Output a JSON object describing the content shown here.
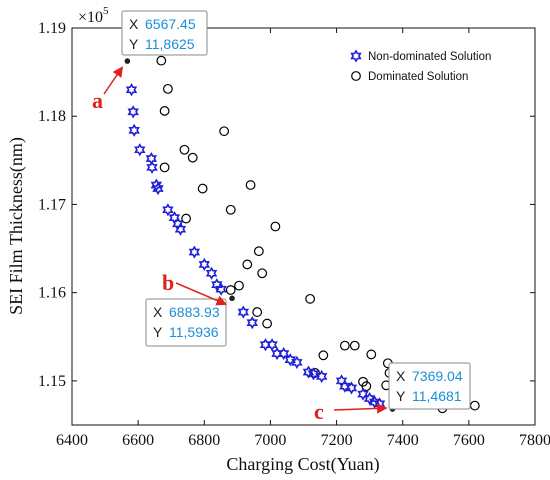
{
  "chart_data": {
    "type": "scatter",
    "title": "",
    "xlabel": "Charging Cost(Yuan)",
    "ylabel": "SEI Film Thickness(nm)",
    "y_multiplier": "×10",
    "y_multiplier_exp": "5",
    "xlim": [
      6400,
      7800
    ],
    "ylim": [
      1.145,
      1.19
    ],
    "xticks": [
      "6400",
      "6600",
      "6800",
      "7000",
      "7200",
      "7400",
      "7600",
      "7800"
    ],
    "yticks": [
      "1.15",
      "1.16",
      "1.17",
      "1.18",
      "1.19"
    ],
    "grid": false,
    "legend_position": "top-right",
    "legend": [
      {
        "label": "Non-dominated Solution",
        "marker": "hexagram",
        "color": "#1f1fd6"
      },
      {
        "label": "Dominated Solution",
        "marker": "circle",
        "color": "#000000"
      }
    ],
    "series": [
      {
        "name": "Non-dominated Solution",
        "marker": "hexagram",
        "color": "#1f1fd6",
        "points": [
          [
            6580,
            1.183
          ],
          [
            6585,
            1.1805
          ],
          [
            6588,
            1.1784
          ],
          [
            6605,
            1.1762
          ],
          [
            6640,
            1.1752
          ],
          [
            6642,
            1.1742
          ],
          [
            6655,
            1.1722
          ],
          [
            6660,
            1.1718
          ],
          [
            6690,
            1.1694
          ],
          [
            6710,
            1.1685
          ],
          [
            6720,
            1.1678
          ],
          [
            6728,
            1.1672
          ],
          [
            6770,
            1.1646
          ],
          [
            6800,
            1.1632
          ],
          [
            6822,
            1.1622
          ],
          [
            6838,
            1.1609
          ],
          [
            6851,
            1.1604
          ],
          [
            6918,
            1.1578
          ],
          [
            6945,
            1.1566
          ],
          [
            6985,
            1.1541
          ],
          [
            7005,
            1.1541
          ],
          [
            7020,
            1.1531
          ],
          [
            7040,
            1.1531
          ],
          [
            7060,
            1.1524
          ],
          [
            7080,
            1.1521
          ],
          [
            7115,
            1.151
          ],
          [
            7130,
            1.1508
          ],
          [
            7155,
            1.1505
          ],
          [
            7215,
            1.15
          ],
          [
            7225,
            1.1494
          ],
          [
            7245,
            1.1492
          ],
          [
            7280,
            1.1485
          ],
          [
            7300,
            1.148
          ],
          [
            7315,
            1.1476
          ],
          [
            7330,
            1.1474
          ]
        ]
      },
      {
        "name": "Dominated Solution",
        "marker": "circle",
        "color": "#000000",
        "points": [
          [
            6670,
            1.1863
          ],
          [
            6690,
            1.1831
          ],
          [
            6680,
            1.1806
          ],
          [
            6860,
            1.1783
          ],
          [
            6740,
            1.1762
          ],
          [
            6765,
            1.1753
          ],
          [
            6680,
            1.1742
          ],
          [
            6940,
            1.1722
          ],
          [
            6795,
            1.1718
          ],
          [
            6880,
            1.1694
          ],
          [
            6745,
            1.1684
          ],
          [
            7015,
            1.1675
          ],
          [
            6965,
            1.1647
          ],
          [
            6930,
            1.1632
          ],
          [
            6975,
            1.1622
          ],
          [
            6905,
            1.1608
          ],
          [
            6880,
            1.1603
          ],
          [
            7120,
            1.1593
          ],
          [
            6960,
            1.1578
          ],
          [
            6990,
            1.1565
          ],
          [
            7135,
            1.1509
          ],
          [
            7160,
            1.1529
          ],
          [
            7225,
            1.154
          ],
          [
            7255,
            1.154
          ],
          [
            7305,
            1.153
          ],
          [
            7355,
            1.152
          ],
          [
            7360,
            1.1509
          ],
          [
            7280,
            1.1499
          ],
          [
            7290,
            1.1494
          ],
          [
            7350,
            1.1495
          ],
          [
            7520,
            1.1469
          ],
          [
            7618,
            1.1472
          ]
        ]
      }
    ],
    "annotations": [
      {
        "letter": "a",
        "x": 6567.45,
        "y": 1.18625,
        "x_text": "6567.45",
        "y_text": "11,8625"
      },
      {
        "letter": "b",
        "x": 6883.93,
        "y": 1.15936,
        "x_text": "6883.93",
        "y_text": "11,5936"
      },
      {
        "letter": "c",
        "x": 7369.04,
        "y": 1.14681,
        "x_text": "7369.04",
        "y_text": "11,4681"
      }
    ],
    "datatip_x_key": "X",
    "datatip_y_key": "Y"
  }
}
